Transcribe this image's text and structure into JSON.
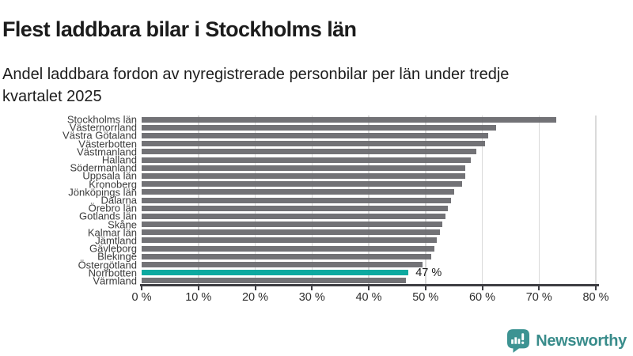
{
  "header": {
    "title": "Flest laddbara bilar i Stockholms län",
    "subtitle": "Andel laddbara fordon av nyregistrerade personbilar per län under tredje\nkvartalet 2025"
  },
  "chart_data": {
    "type": "bar",
    "orientation": "horizontal",
    "title": "Flest laddbara bilar i Stockholms län",
    "subtitle": "Andel laddbara fordon av nyregistrerade personbilar per län under tredje kvartalet 2025",
    "unit": "%",
    "xlim": [
      0,
      80
    ],
    "grid": true,
    "categories": [
      "Stockholms län",
      "Västernorrland",
      "Västra Götaland",
      "Västerbotten",
      "Västmanland",
      "Halland",
      "Södermanland",
      "Uppsala län",
      "Kronoberg",
      "Jönköpings län",
      "Dalarna",
      "Örebro län",
      "Gotlands län",
      "Skåne",
      "Kalmar län",
      "Jämtland",
      "Gävleborg",
      "Blekinge",
      "Östergötland",
      "Norrbotten",
      "Värmland"
    ],
    "values": [
      73,
      62.5,
      61,
      60.5,
      59,
      58,
      57,
      57,
      56.5,
      55,
      54.5,
      54,
      53.5,
      53,
      52.5,
      52,
      51.5,
      51,
      49.5,
      47,
      46.5
    ],
    "x_ticks": [
      "0 %",
      "10 %",
      "20 %",
      "30 %",
      "40 %",
      "50 %",
      "60 %",
      "70 %",
      "80 %"
    ],
    "highlight": {
      "category": "Norrbotten",
      "index": 19,
      "value": 47,
      "label": "47 %"
    },
    "colors": {
      "bar": "#6a6a6f",
      "highlight_bar": "#00a49b",
      "gridline": "#dadada",
      "axis": "#3e3e43"
    }
  },
  "footer": {
    "brand": "Newsworthy",
    "logo_icon": "bar-chart-speech-bubble-icon",
    "logo_color": "#3d9392"
  }
}
